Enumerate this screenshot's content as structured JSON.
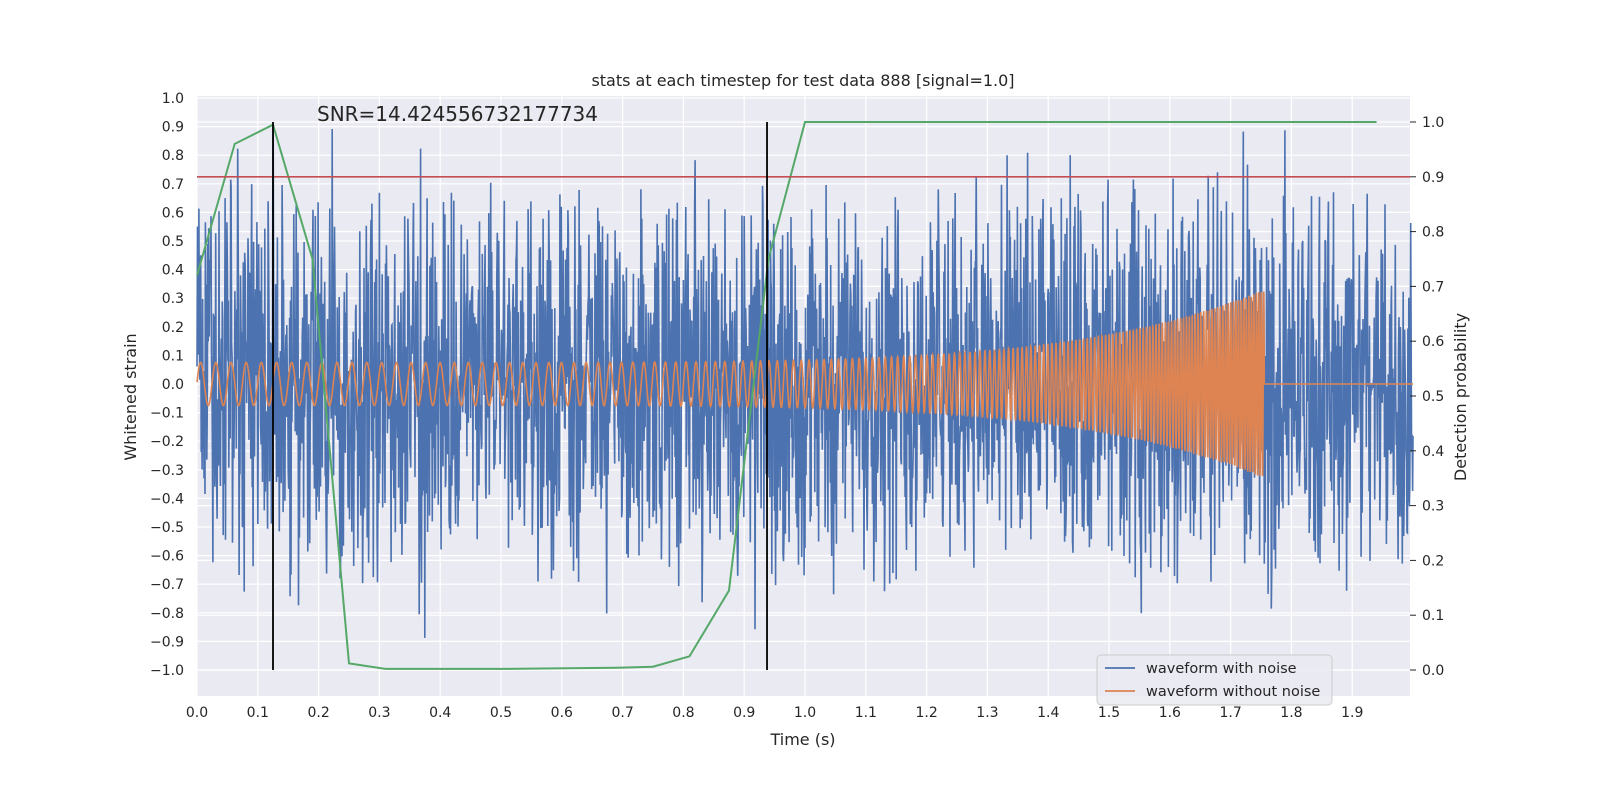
{
  "chart_data": {
    "type": "line",
    "title": "stats at each timestep for test data 888 [signal=1.0]",
    "xlabel": "Time (s)",
    "ylabel": "Whitened strain",
    "y2label": "Detection probability",
    "annotation": "SNR=14.424556732177734",
    "xlim": [
      0.0,
      2.0
    ],
    "ylim": [
      -1.1,
      1.0
    ],
    "y2lim": [
      -0.05,
      1.04
    ],
    "xticks": [
      "0.0",
      "0.1",
      "0.2",
      "0.3",
      "0.4",
      "0.5",
      "0.6",
      "0.7",
      "0.8",
      "0.9",
      "1.0",
      "1.1",
      "1.2",
      "1.3",
      "1.4",
      "1.5",
      "1.6",
      "1.7",
      "1.8",
      "1.9"
    ],
    "yticks": [
      "1.0",
      "0.9",
      "0.8",
      "0.7",
      "0.6",
      "0.5",
      "0.4",
      "0.3",
      "0.2",
      "0.1",
      "0.0",
      "−0.1",
      "−0.2",
      "−0.3",
      "−0.4",
      "−0.5",
      "−0.6",
      "−0.7",
      "−0.8",
      "−0.9",
      "−1.0"
    ],
    "y2ticks": [
      "1.0",
      "0.9",
      "0.8",
      "0.7",
      "0.6",
      "0.5",
      "0.4",
      "0.3",
      "0.2",
      "0.1",
      "0.0"
    ],
    "grid": true,
    "legend_placement": "lower-right",
    "series": [
      {
        "name": "waveform with noise",
        "color": "#4c72b0",
        "description": "noisy whitened strain, amplitude roughly ±0.5 with spikes to ±0.95"
      },
      {
        "name": "waveform without noise",
        "color": "#dd8452",
        "chirp": {
          "start": 0.0,
          "merger": 1.755,
          "end": 2.0,
          "amp_start": 0.075,
          "amp_merger": 0.33,
          "freq_start_hz": 40,
          "freq_merger_hz": 250,
          "post_merger_level": 0.0
        }
      },
      {
        "axis": "right",
        "color": "#55a868",
        "x": [
          0.0,
          0.062,
          0.125,
          0.19,
          0.25,
          0.31,
          0.5,
          0.69,
          0.75,
          0.81,
          0.875,
          0.94,
          1.0,
          1.06,
          1.5,
          1.94
        ],
        "y": [
          0.72,
          0.96,
          0.995,
          0.75,
          0.012,
          0.002,
          0.002,
          0.004,
          0.006,
          0.025,
          0.145,
          0.75,
          1.0,
          1.0,
          1.0,
          1.0
        ]
      }
    ],
    "hlines": [
      {
        "axis": "right",
        "y": 0.9,
        "color": "#c44e52"
      }
    ],
    "vlines": [
      {
        "x": 0.125,
        "color": "#000000"
      },
      {
        "x": 0.9375,
        "color": "#000000"
      }
    ]
  }
}
